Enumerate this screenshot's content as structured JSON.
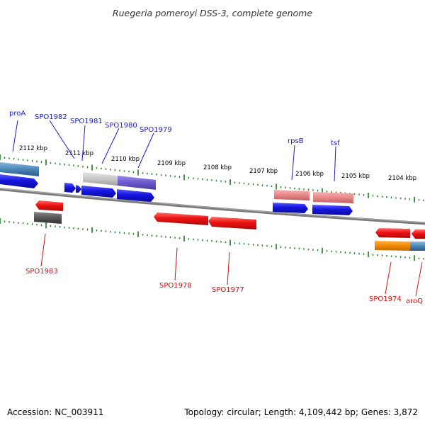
{
  "title": "Ruegeria pomeroyi DSS-3, complete genome",
  "footer": {
    "accession": "Accession: NC_003911",
    "summary": "Topology: circular; Length: 4,109,442 bp; Genes: 3,872"
  },
  "scale_labels": [
    "2112 kbp",
    "2111 kbp",
    "2110 kbp",
    "2109 kbp",
    "2108 kbp",
    "2107 kbp",
    "2106 kbp",
    "2105 kbp",
    "2104 kbp"
  ],
  "genes_forward": [
    "proA",
    "SPO1982",
    "SPO1981",
    "SPO1980",
    "SPO1979",
    "rpsB",
    "tsf"
  ],
  "genes_reverse": [
    "SPO1983",
    "SPO1978",
    "SPO1977",
    "SPO1974",
    "aroQ"
  ],
  "colors": {
    "forward_label": "#1a1acc",
    "reverse_label": "#cc1111",
    "tick": "#1a7a1a",
    "backbone": "#888888",
    "arrow_blue": "#1111dd",
    "arrow_red": "#ee1111",
    "steel_blue": "#4a86b8",
    "light_gray": "#c8c8c8",
    "purple": "#6a5acd",
    "salmon": "#e88888",
    "dark_gray": "#555555",
    "orange": "#f08a00"
  }
}
